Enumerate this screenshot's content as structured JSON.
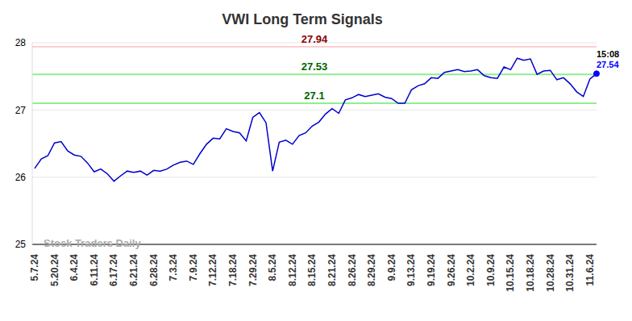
{
  "chart_data": {
    "type": "line",
    "title": "VWI Long Term Signals",
    "watermark": "Stock Traders Daily",
    "categories": [
      "5.7.24",
      null,
      null,
      "5.20.24",
      null,
      null,
      "6.4.24",
      null,
      null,
      "6.11.24",
      null,
      null,
      "6.17.24",
      null,
      null,
      "6.21.24",
      null,
      null,
      "6.28.24",
      null,
      null,
      "7.3.24",
      null,
      null,
      "7.9.24",
      null,
      null,
      "7.12.24",
      null,
      null,
      "7.18.24",
      null,
      null,
      "7.29.24",
      null,
      null,
      "8.5.24",
      null,
      null,
      "8.12.24",
      null,
      null,
      "8.15.24",
      null,
      null,
      "8.21.24",
      null,
      null,
      "8.26.24",
      null,
      null,
      "8.29.24",
      null,
      null,
      "9.9.24",
      null,
      null,
      "9.13.24",
      null,
      null,
      "9.19.24",
      null,
      null,
      "9.26.24",
      null,
      null,
      "10.2.24",
      null,
      null,
      "10.9.24",
      null,
      null,
      "10.15.24",
      null,
      null,
      "10.18.24",
      null,
      null,
      "10.28.24",
      null,
      null,
      "10.31.24",
      null,
      null,
      "11.6.24",
      null
    ],
    "values": [
      26.13,
      26.27,
      26.32,
      26.51,
      26.53,
      26.39,
      26.33,
      26.31,
      26.21,
      26.08,
      26.12,
      26.05,
      25.94,
      26.02,
      26.09,
      26.07,
      26.09,
      26.03,
      26.1,
      26.09,
      26.12,
      26.18,
      26.22,
      26.24,
      26.19,
      26.35,
      26.49,
      26.58,
      26.57,
      26.72,
      26.68,
      26.66,
      26.54,
      26.89,
      26.96,
      26.81,
      26.09,
      26.52,
      26.55,
      26.49,
      26.62,
      26.66,
      26.76,
      26.82,
      26.94,
      27.02,
      26.95,
      27.15,
      27.18,
      27.23,
      27.2,
      27.22,
      27.24,
      27.19,
      27.17,
      27.1,
      27.1,
      27.3,
      27.36,
      27.39,
      27.48,
      27.47,
      27.56,
      27.58,
      27.6,
      27.57,
      27.58,
      27.6,
      27.51,
      27.48,
      27.47,
      27.64,
      27.6,
      27.77,
      27.74,
      27.76,
      27.53,
      27.58,
      27.59,
      27.45,
      27.48,
      27.39,
      27.27,
      27.2,
      27.46,
      27.54
    ],
    "color": "#0000cc",
    "ylim": [
      25,
      28
    ],
    "yticks": [
      25,
      26,
      27,
      28
    ],
    "grid": true,
    "signals": [
      {
        "value": 27.94,
        "color": "#8b0000",
        "line_color": "#ffcccc"
      },
      {
        "value": 27.53,
        "color": "#006400",
        "line_color": "#90ee90"
      },
      {
        "value": 27.1,
        "color": "#006400",
        "line_color": "#90ee90"
      }
    ],
    "last_point": {
      "time": "15:08",
      "value": 27.54
    }
  }
}
